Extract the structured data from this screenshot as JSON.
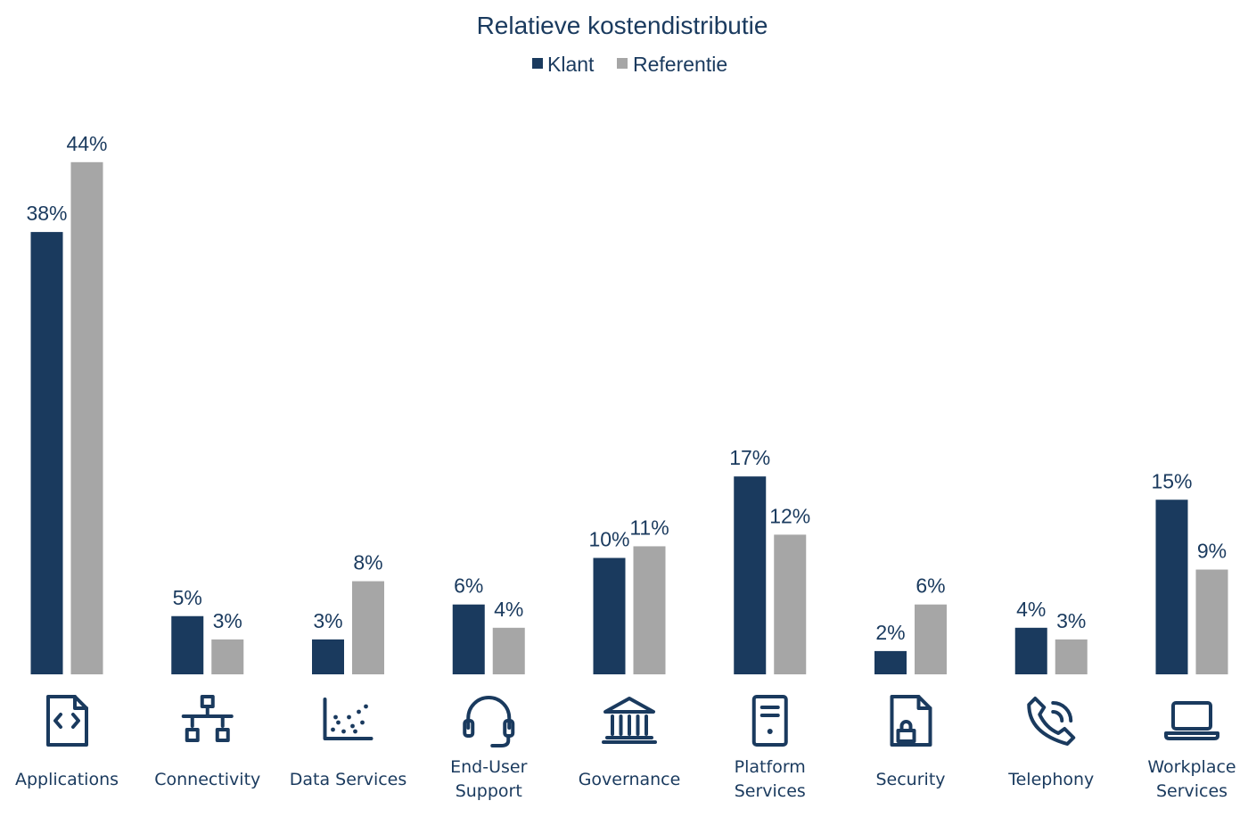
{
  "chart_data": {
    "type": "bar",
    "title": "Relatieve kostendistributie",
    "legend_position": "top-center",
    "grid": false,
    "ylim": [
      0,
      46
    ],
    "categories": [
      {
        "label": [
          "Applications"
        ],
        "icon": "code-file-icon"
      },
      {
        "label": [
          "Connectivity"
        ],
        "icon": "network-icon"
      },
      {
        "label": [
          "Data Services"
        ],
        "icon": "scatter-plot-icon"
      },
      {
        "label": [
          "End-User",
          "Support"
        ],
        "icon": "headset-icon"
      },
      {
        "label": [
          "Governance"
        ],
        "icon": "institution-icon"
      },
      {
        "label": [
          "Platform",
          "Services"
        ],
        "icon": "server-icon"
      },
      {
        "label": [
          "Security"
        ],
        "icon": "lock-file-icon"
      },
      {
        "label": [
          "Telephony"
        ],
        "icon": "phone-icon"
      },
      {
        "label": [
          "Workplace",
          "Services"
        ],
        "icon": "laptop-icon"
      }
    ],
    "series": [
      {
        "name": "Klant",
        "color": "#1a3a5e",
        "values": [
          38,
          5,
          3,
          6,
          10,
          17,
          2,
          4,
          15
        ],
        "labels": [
          "38%",
          "5%",
          "3%",
          "6%",
          "10%",
          "17%",
          "2%",
          "4%",
          "15%"
        ]
      },
      {
        "name": "Referentie",
        "color": "#a6a6a6",
        "values": [
          44,
          3,
          8,
          4,
          11,
          12,
          6,
          3,
          9
        ],
        "labels": [
          "44%",
          "3%",
          "8%",
          "4%",
          "11%",
          "12%",
          "6%",
          "3%",
          "9%"
        ]
      }
    ]
  }
}
